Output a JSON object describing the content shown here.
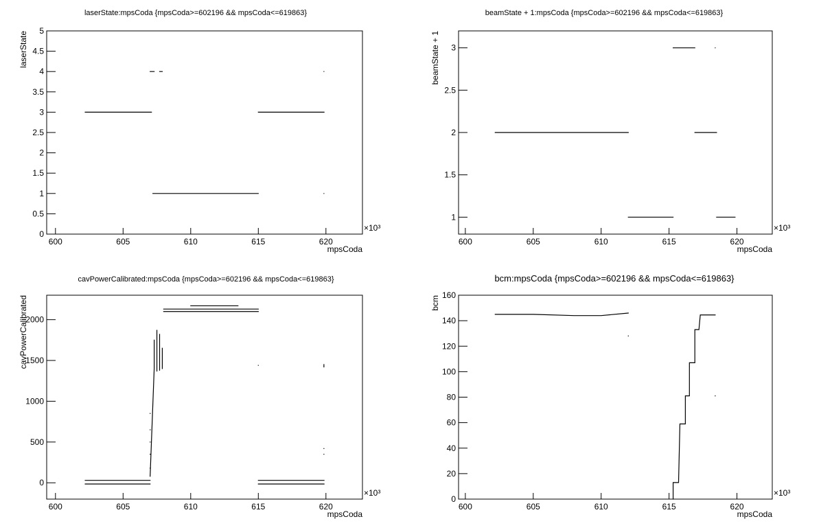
{
  "chart_data": [
    {
      "type": "line",
      "title": "laserState:mpsCoda {mpsCoda>=602196 && mpsCoda<=619863}",
      "x_label": "mpsCoda",
      "y_label": "laserState",
      "x_multiplier": "×10³",
      "xlim": [
        599350,
        622700
      ],
      "xticks": [
        {
          "value": 600000,
          "label": "600"
        },
        {
          "value": 605000,
          "label": "605"
        },
        {
          "value": 610000,
          "label": "610"
        },
        {
          "value": 615000,
          "label": "615"
        },
        {
          "value": 620000,
          "label": "620"
        }
      ],
      "ylim": [
        0,
        5
      ],
      "yticks": [
        0,
        0.5,
        1,
        1.5,
        2,
        2.5,
        3,
        3.5,
        4,
        4.5,
        5
      ],
      "series": [
        {
          "color": "#000000",
          "x": [
            602196,
            607100,
            607100,
            607000,
            607300,
            607300,
            607700,
            607900,
            607900,
            607200,
            615000,
            615000,
            615000,
            619863,
            619863,
            619850,
            619850,
            619850
          ],
          "values": [
            3,
            3,
            null,
            4,
            4,
            null,
            4,
            4,
            null,
            1,
            1,
            null,
            3,
            3,
            null,
            4,
            null,
            1
          ]
        }
      ]
    },
    {
      "type": "line",
      "title": "beamState + 1:mpsCoda {mpsCoda>=602196 && mpsCoda<=619863}",
      "x_label": "mpsCoda",
      "y_label": "beamState + 1",
      "x_multiplier": "×10³",
      "xlim": [
        599500,
        622600
      ],
      "xticks": [
        {
          "value": 600000,
          "label": "600"
        },
        {
          "value": 605000,
          "label": "605"
        },
        {
          "value": 610000,
          "label": "610"
        },
        {
          "value": 615000,
          "label": "615"
        },
        {
          "value": 620000,
          "label": "620"
        }
      ],
      "ylim": [
        0.8,
        3.2
      ],
      "yticks": [
        1,
        1.5,
        2,
        2.5,
        3
      ],
      "series": [
        {
          "color": "#000000",
          "x": [
            602196,
            612000,
            612000,
            612000,
            615300,
            615300,
            615300,
            616900,
            616900,
            616900,
            618500,
            618500,
            618500,
            619863,
            619863,
            618400
          ],
          "values": [
            2,
            2,
            null,
            1,
            1,
            null,
            3,
            3,
            null,
            2,
            2,
            null,
            1,
            1,
            null,
            3
          ]
        }
      ]
    },
    {
      "type": "line",
      "title": "cavPowerCalibrated:mpsCoda {mpsCoda>=602196 && mpsCoda<=619863}",
      "x_label": "mpsCoda",
      "y_label": "cavPowerCalibrated",
      "x_multiplier": "×10³",
      "xlim": [
        599350,
        622700
      ],
      "xticks": [
        {
          "value": 600000,
          "label": "600"
        },
        {
          "value": 605000,
          "label": "605"
        },
        {
          "value": 610000,
          "label": "610"
        },
        {
          "value": 615000,
          "label": "615"
        },
        {
          "value": 620000,
          "label": "620"
        }
      ],
      "ylim": [
        -200,
        2300
      ],
      "yticks": [
        0,
        500,
        1000,
        1500,
        2000
      ],
      "series": [
        {
          "color": "#000000",
          "x": [
            602196,
            607000,
            607000,
            602196,
            607000,
            607000,
            607000,
            607000,
            607000,
            607000,
            607000,
            607000,
            607000,
            607000,
            607000,
            607000,
            607000,
            607300,
            607300,
            607300,
            607500,
            607500,
            607500,
            607700,
            607700,
            607700,
            607900,
            607900,
            607900,
            608000,
            615000,
            615000,
            608000,
            615000,
            615000,
            610000,
            613500,
            613500,
            615000,
            619863,
            619863,
            615000,
            619863,
            619863,
            615000,
            615000,
            619850,
            619850,
            619850,
            619850,
            619850,
            619850,
            619850
          ],
          "values": [
            30,
            30,
            null,
            -15,
            -15,
            null,
            850,
            null,
            650,
            null,
            500,
            null,
            350,
            null,
            180,
            null,
            80,
            1400,
            1750,
            null,
            1370,
            1870,
            null,
            1380,
            1820,
            null,
            1400,
            1650,
            null,
            2100,
            2100,
            null,
            2130,
            2130,
            null,
            2170,
            2170,
            null,
            30,
            30,
            null,
            -15,
            -15,
            null,
            1440,
            null,
            1450,
            1420,
            null,
            420,
            null,
            350,
            null
          ]
        }
      ]
    },
    {
      "type": "line",
      "title": "bcm:mpsCoda {mpsCoda>=602196 && mpsCoda<=619863}",
      "x_label": "mpsCoda",
      "y_label": "bcm",
      "x_multiplier": "×10³",
      "xlim": [
        599500,
        622600
      ],
      "xticks": [
        {
          "value": 600000,
          "label": "600"
        },
        {
          "value": 605000,
          "label": "605"
        },
        {
          "value": 610000,
          "label": "610"
        },
        {
          "value": 615000,
          "label": "615"
        },
        {
          "value": 620000,
          "label": "620"
        }
      ],
      "ylim": [
        0,
        160
      ],
      "yticks": [
        0,
        20,
        40,
        60,
        80,
        100,
        120,
        140,
        160
      ],
      "series": [
        {
          "color": "#000000",
          "x": [
            602196,
            605000,
            608000,
            610000,
            612000,
            612000,
            612000,
            612000,
            615300,
            615300,
            615700,
            615800,
            616200,
            616200,
            616500,
            616500,
            616900,
            616900,
            617200,
            617300,
            618400,
            618400,
            618400
          ],
          "values": [
            145,
            145,
            144,
            144,
            146,
            null,
            128,
            null,
            0,
            13,
            13,
            59,
            59,
            81,
            81,
            107,
            107,
            133,
            133,
            144.5,
            144.5,
            null,
            81
          ]
        }
      ]
    }
  ]
}
